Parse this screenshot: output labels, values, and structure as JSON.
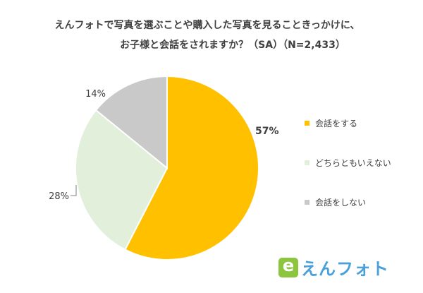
{
  "chart_data": {
    "type": "pie",
    "title_lines": [
      "えんフォトで写真を選ぶことや購入した写真を見ることきっかけに、",
      "お子様と会話をされますか？（SA）（N=2,433）"
    ],
    "categories": [
      "会話をする",
      "どちらともいえない",
      "会話をしない"
    ],
    "values": [
      57,
      28,
      14
    ],
    "value_labels": [
      "57%",
      "28%",
      "14%"
    ],
    "colors": [
      "#ffc000",
      "#e2efda",
      "#c9c9c9"
    ],
    "legend_position": "right",
    "start": "12 o'clock",
    "direction": "clockwise"
  },
  "logo": {
    "text": "えんフォト",
    "mark_letter": "e",
    "mark_color": "#8cc63f",
    "text_color": "#4aa0d8"
  }
}
